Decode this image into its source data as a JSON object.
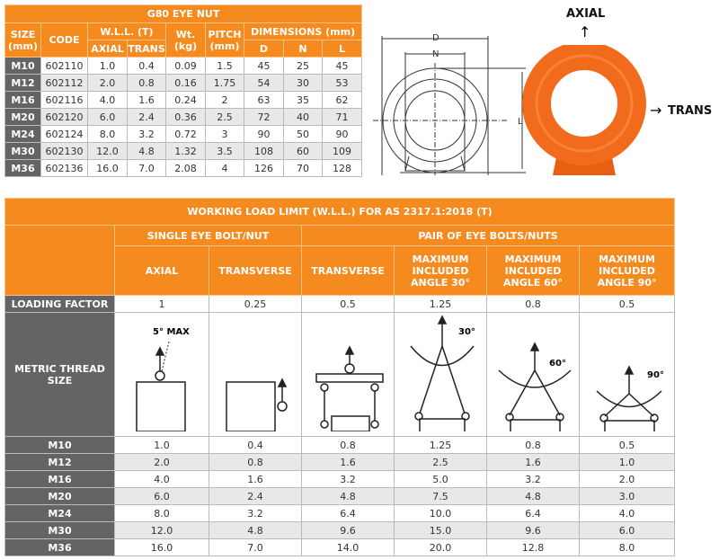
{
  "eye_nut_table": {
    "title": "G80 EYE NUT",
    "headers": {
      "size": "SIZE (mm)",
      "code": "CODE",
      "wll": "W.L.L. (T)",
      "axial": "AXIAL",
      "trans": "TRANS",
      "wt": "Wt. (kg)",
      "pitch": "PITCH (mm)",
      "dimensions": "DIMENSIONS (mm)",
      "d": "D",
      "n": "N",
      "l": "L"
    },
    "rows": [
      [
        "M10",
        "602110",
        "1.0",
        "0.4",
        "0.09",
        "1.5",
        "45",
        "25",
        "45"
      ],
      [
        "M12",
        "602112",
        "2.0",
        "0.8",
        "0.16",
        "1.75",
        "54",
        "30",
        "53"
      ],
      [
        "M16",
        "602116",
        "4.0",
        "1.6",
        "0.24",
        "2",
        "63",
        "35",
        "62"
      ],
      [
        "M20",
        "602120",
        "6.0",
        "2.4",
        "0.36",
        "2.5",
        "72",
        "40",
        "71"
      ],
      [
        "M24",
        "602124",
        "8.0",
        "3.2",
        "0.72",
        "3",
        "90",
        "50",
        "90"
      ],
      [
        "M30",
        "602130",
        "12.0",
        "4.8",
        "1.32",
        "3.5",
        "108",
        "60",
        "109"
      ],
      [
        "M36",
        "602136",
        "16.0",
        "7.0",
        "2.08",
        "4",
        "126",
        "70",
        "128"
      ]
    ]
  },
  "drawing": {
    "d": "D",
    "n": "N",
    "l": "L"
  },
  "photo": {
    "axial": "AXIAL",
    "trans": "TRANS",
    "color": "#f26a1b"
  },
  "wll_table": {
    "title": "WORKING LOAD LIMIT (W.L.L.) FOR AS 2317.1:2018 (T)",
    "group_single": "SINGLE EYE BOLT/NUT",
    "group_pair": "PAIR OF EYE BOLTS/NUTS",
    "columns": [
      "AXIAL",
      "TRANSVERSE",
      "TRANSVERSE",
      "MAXIMUM INCLUDED ANGLE 30°",
      "MAXIMUM INCLUDED ANGLE 60°",
      "MAXIMUM INCLUDED ANGLE 90°"
    ],
    "loading_factor_label": "LOADING FACTOR",
    "loading_factors": [
      "1",
      "0.25",
      "0.5",
      "1.25",
      "0.8",
      "0.5"
    ],
    "metric_label": "METRIC THREAD SIZE",
    "diagram_labels": {
      "max": "5° MAX",
      "a30": "30°",
      "a60": "60°",
      "a90": "90°"
    },
    "rows": [
      [
        "M10",
        "1.0",
        "0.4",
        "0.8",
        "1.25",
        "0.8",
        "0.5"
      ],
      [
        "M12",
        "2.0",
        "0.8",
        "1.6",
        "2.5",
        "1.6",
        "1.0"
      ],
      [
        "M16",
        "4.0",
        "1.6",
        "3.2",
        "5.0",
        "3.2",
        "2.0"
      ],
      [
        "M20",
        "6.0",
        "2.4",
        "4.8",
        "7.5",
        "4.8",
        "3.0"
      ],
      [
        "M24",
        "8.0",
        "3.2",
        "6.4",
        "10.0",
        "6.4",
        "4.0"
      ],
      [
        "M30",
        "12.0",
        "4.8",
        "9.6",
        "15.0",
        "9.6",
        "6.0"
      ],
      [
        "M36",
        "16.0",
        "7.0",
        "14.0",
        "20.0",
        "12.8",
        "8.0"
      ]
    ]
  },
  "colors": {
    "orange": "#f58a1f",
    "dark": "#646464",
    "alt_row": "#e8e8e8"
  }
}
